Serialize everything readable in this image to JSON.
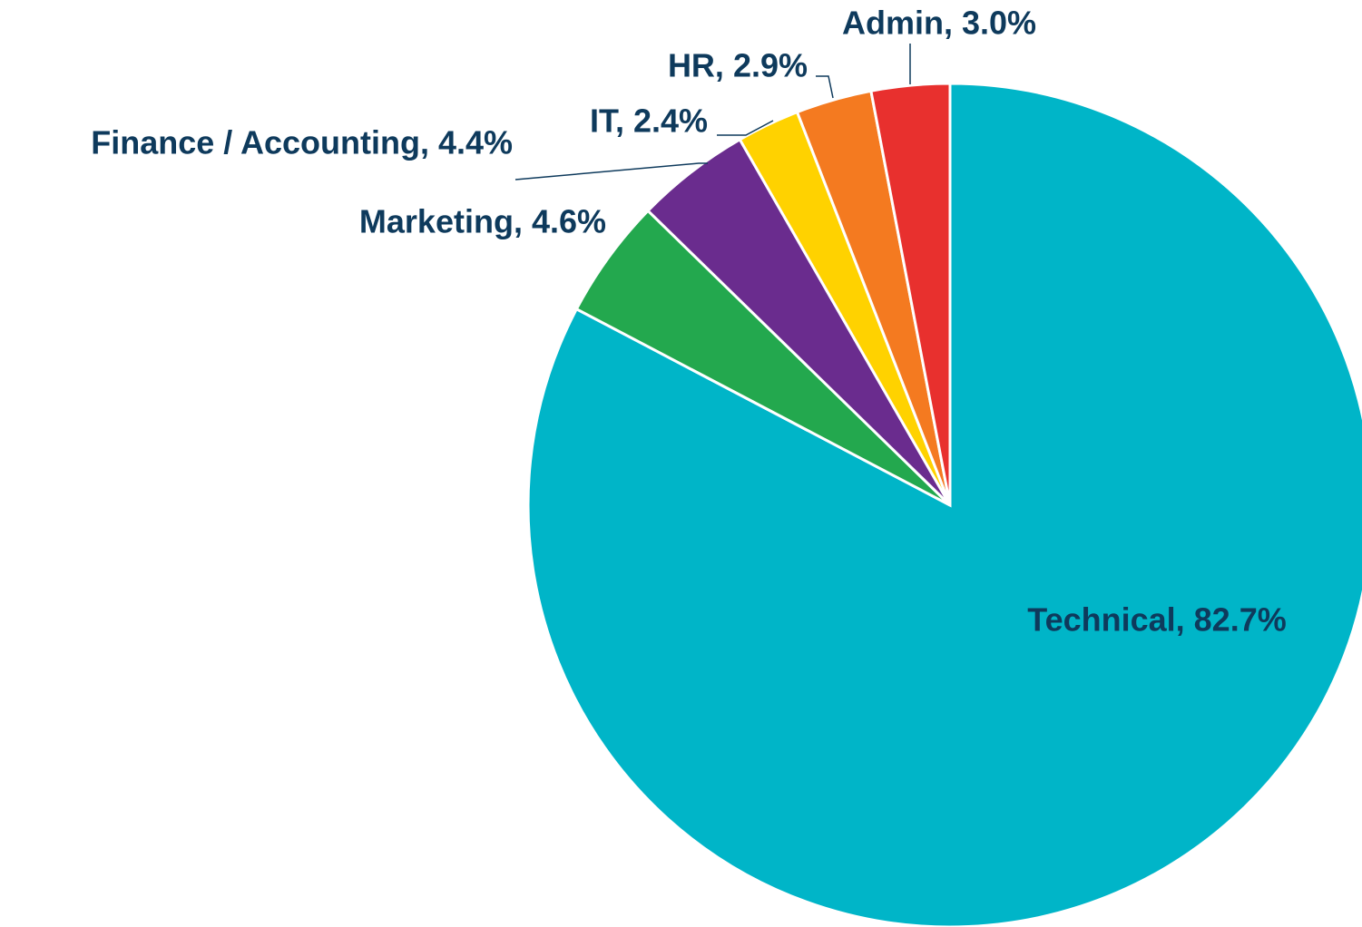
{
  "chart_data": {
    "type": "pie",
    "values": [
      82.7,
      4.6,
      4.4,
      2.4,
      2.9,
      3.0
    ],
    "value_labels": [
      "Technical, 82.7%",
      "Marketing, 4.6%",
      "Finance / Accounting, 4.4%",
      "IT, 2.4%",
      "HR, 2.9%",
      "Admin, 3.0%"
    ],
    "colors": [
      "#00b5c8",
      "#23a84e",
      "#6a2c8e",
      "#ffd200",
      "#f47a20",
      "#e8302e"
    ]
  }
}
